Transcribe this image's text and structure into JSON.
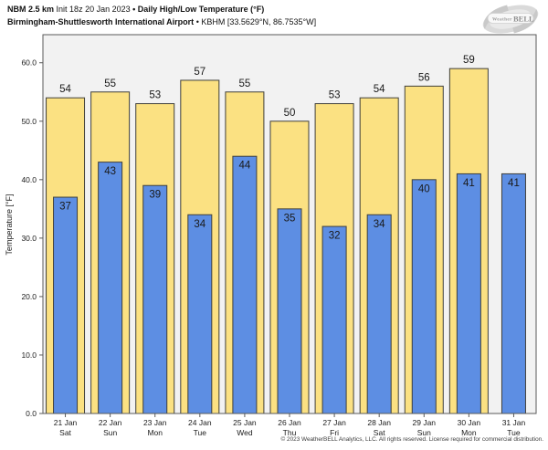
{
  "header": {
    "model": "NBM 2.5 km",
    "init": "Init 18z 20 Jan 2023",
    "sep": "•",
    "product": "Daily High/Low Temperature (°F)",
    "station": "Birmingham-Shuttlesworth International Airport",
    "station_meta": "KBHM [33.5629°N, 86.7535°W]"
  },
  "logo": {
    "weather": "Weather",
    "bell": "BELL"
  },
  "footer": {
    "copyright": "© 2023 WeatherBELL Analytics, LLC. All rights reserved. License required for commercial distribution."
  },
  "chart_data": {
    "type": "bar",
    "title": "Daily High/Low Temperature (°F)",
    "subtitle": "NBM 2.5 km • KBHM Birmingham-Shuttlesworth International Airport",
    "xlabel": "",
    "ylabel": "Temperature [°F]",
    "ylim": [
      0,
      64.8
    ],
    "yticks": [
      0,
      10,
      20,
      30,
      40,
      50,
      60
    ],
    "ytick_labels": [
      "0.0",
      "10.0",
      "20.0",
      "30.0",
      "40.0",
      "50.0",
      "60.0"
    ],
    "grid": false,
    "legend": "none",
    "categories": [
      {
        "date": "21 Jan",
        "day": "Sat"
      },
      {
        "date": "22 Jan",
        "day": "Sun"
      },
      {
        "date": "23 Jan",
        "day": "Mon"
      },
      {
        "date": "24 Jan",
        "day": "Tue"
      },
      {
        "date": "25 Jan",
        "day": "Wed"
      },
      {
        "date": "26 Jan",
        "day": "Thu"
      },
      {
        "date": "27 Jan",
        "day": "Fri"
      },
      {
        "date": "28 Jan",
        "day": "Sat"
      },
      {
        "date": "29 Jan",
        "day": "Sun"
      },
      {
        "date": "30 Jan",
        "day": "Mon"
      },
      {
        "date": "31 Jan",
        "day": "Tue"
      }
    ],
    "series": [
      {
        "name": "Daily High",
        "color": "#FBE182",
        "values": [
          54,
          55,
          53,
          57,
          55,
          50,
          53,
          54,
          56,
          59,
          null
        ]
      },
      {
        "name": "Daily Low",
        "color": "#5D8EE3",
        "values": [
          37,
          43,
          39,
          34,
          44,
          35,
          32,
          34,
          40,
          41,
          41
        ]
      }
    ],
    "colors": {
      "figure_bg": "#FFFFFF",
      "plot_bg": "#F2F2F2",
      "bar_edge": "#3F3F3A",
      "spine": "#595959",
      "text": "#1A1A1A"
    }
  }
}
